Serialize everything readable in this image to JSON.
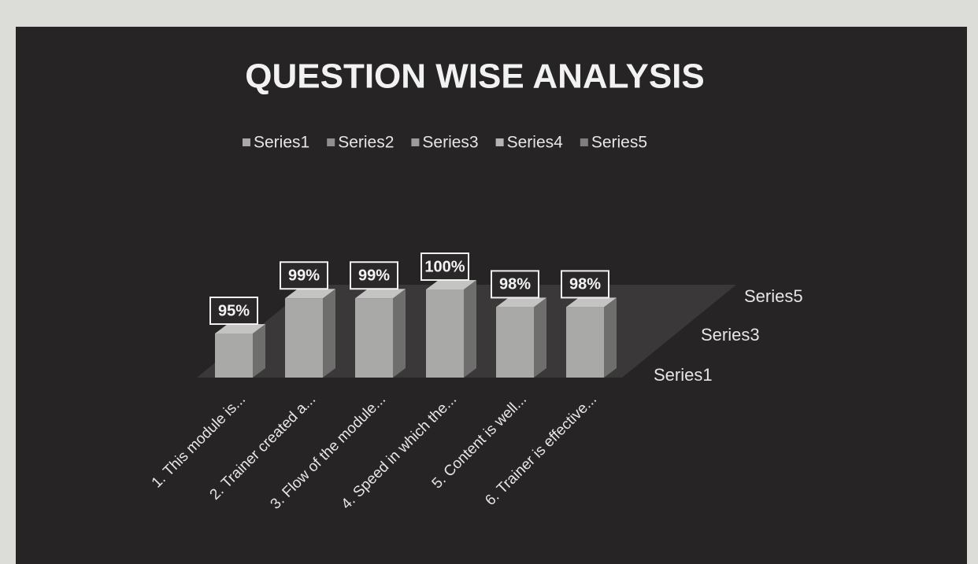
{
  "chart_data": {
    "type": "bar3d",
    "title": "QUESTION WISE ANALYSIS",
    "categories": [
      "1. This module is...",
      "2. Trainer created a...",
      "3. Flow of the module...",
      "4. Speed in which the...",
      "5. Content is well...",
      "6. Trainer is effective..."
    ],
    "series": [
      {
        "name": "Series1",
        "color": "#a9a9a7",
        "values": [
          95,
          99,
          99,
          100,
          98,
          98
        ],
        "value_labels": [
          "95%",
          "99%",
          "99%",
          "100%",
          "98%",
          "98%"
        ]
      },
      {
        "name": "Series2",
        "color": "#8f8f8d",
        "values": [
          null,
          null,
          null,
          null,
          null,
          null
        ]
      },
      {
        "name": "Series3",
        "color": "#9c9c9a",
        "values": [
          null,
          null,
          null,
          null,
          null,
          null
        ]
      },
      {
        "name": "Series4",
        "color": "#b5b5b3",
        "values": [
          null,
          null,
          null,
          null,
          null,
          null
        ]
      },
      {
        "name": "Series5",
        "color": "#7f7f7d",
        "values": [
          null,
          null,
          null,
          null,
          null,
          null
        ]
      }
    ],
    "depth_axis_labels": [
      "Series1",
      "Series3",
      "Series5"
    ],
    "ylim": [
      90,
      100
    ],
    "legend": "top"
  }
}
